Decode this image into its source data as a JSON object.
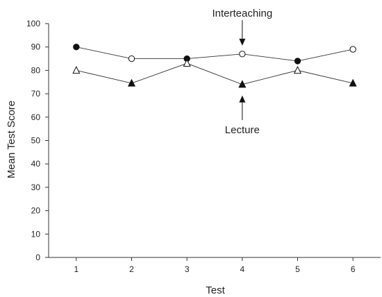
{
  "chart_data": {
    "type": "line",
    "xlabel": "Test",
    "ylabel": "Mean Test Score",
    "ylim": [
      0,
      100
    ],
    "xlim": [
      0.5,
      6.5
    ],
    "grid": false,
    "yticks": [
      "0",
      "10",
      "20",
      "30",
      "40",
      "50",
      "60",
      "70",
      "80",
      "90",
      "100"
    ],
    "xticks": [
      "1",
      "2",
      "3",
      "4",
      "5",
      "6"
    ],
    "x": [
      1,
      2,
      3,
      4,
      5,
      6
    ],
    "series": [
      {
        "values": [
          90,
          85,
          85,
          87,
          84,
          89
        ],
        "marker": "circle",
        "marker_fill": [
          "filled",
          "open",
          "filled",
          "open",
          "filled",
          "open"
        ]
      },
      {
        "values": [
          80,
          74.5,
          83,
          74,
          80,
          74.5
        ],
        "marker": "triangle",
        "marker_fill": [
          "open",
          "filled",
          "open",
          "filled",
          "open",
          "filled"
        ]
      }
    ],
    "annotations": [
      {
        "text": "Interteaching",
        "x": 4,
        "arrow_to": 87,
        "arrow_direction": "down"
      },
      {
        "text": "Lecture",
        "x": 4,
        "arrow_to": 74,
        "arrow_direction": "up"
      }
    ],
    "colors": {
      "line": "#333333",
      "marker": "#111111",
      "axis": "#333333"
    }
  }
}
